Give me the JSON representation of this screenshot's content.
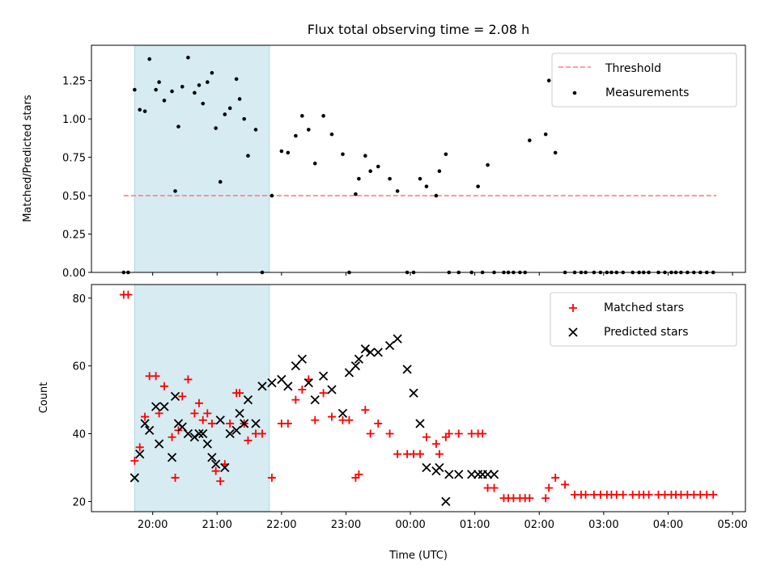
{
  "chart_data": [
    {
      "type": "scatter",
      "title": "Flux total observing time = 2.08 h",
      "ylabel": "Matched/Predicted stars",
      "xlabel": "",
      "xlim": [
        -0.95,
        9.2
      ],
      "ylim": [
        0.0,
        1.48
      ],
      "yticks": [
        "0.00",
        "0.25",
        "0.50",
        "0.75",
        "1.00",
        "1.25"
      ],
      "ytick_values": [
        0.0,
        0.25,
        0.5,
        0.75,
        1.0,
        1.25
      ],
      "shaded_span": [
        -0.28,
        1.81
      ],
      "threshold": {
        "name": "Threshold",
        "value": 0.5,
        "x_range": [
          -0.45,
          8.75
        ],
        "color": "#ff7f7f"
      },
      "series": [
        {
          "name": "Measurements",
          "color": "#000000",
          "x": [
            -0.45,
            -0.38,
            -0.28,
            -0.2,
            -0.12,
            -0.05,
            0.05,
            0.1,
            0.18,
            0.3,
            0.35,
            0.4,
            0.46,
            0.55,
            0.65,
            0.72,
            0.78,
            0.85,
            0.92,
            0.98,
            1.05,
            1.12,
            1.2,
            1.3,
            1.35,
            1.42,
            1.48,
            1.6,
            1.7,
            1.85,
            2.0,
            2.1,
            2.22,
            2.32,
            2.42,
            2.52,
            2.65,
            2.78,
            2.95,
            3.05,
            3.15,
            3.2,
            3.3,
            3.38,
            3.5,
            3.68,
            3.8,
            3.95,
            4.05,
            4.15,
            4.25,
            4.4,
            4.45,
            4.55,
            4.6,
            4.75,
            4.95,
            5.05,
            5.12,
            5.2,
            5.3,
            5.45,
            5.52,
            5.6,
            5.7,
            5.78,
            5.85,
            6.1,
            6.15,
            6.25,
            6.4,
            6.55,
            6.65,
            6.72,
            6.85,
            6.95,
            7.05,
            7.12,
            7.2,
            7.3,
            7.45,
            7.55,
            7.62,
            7.7,
            7.85,
            7.95,
            8.05,
            8.12,
            8.2,
            8.3,
            8.4,
            8.5,
            8.6,
            8.7
          ],
          "y": [
            0.0,
            0.0,
            1.19,
            1.06,
            1.05,
            1.39,
            1.19,
            1.24,
            1.12,
            1.18,
            0.53,
            0.95,
            1.21,
            1.4,
            1.17,
            1.22,
            1.1,
            1.24,
            1.3,
            0.94,
            0.59,
            1.03,
            1.07,
            1.26,
            1.13,
            1.0,
            0.76,
            0.93,
            0.0,
            0.5,
            0.79,
            0.78,
            0.89,
            1.02,
            0.93,
            0.71,
            1.02,
            0.9,
            0.77,
            0.0,
            0.51,
            0.61,
            0.76,
            0.66,
            0.69,
            0.61,
            0.53,
            0.0,
            0.0,
            0.61,
            0.56,
            0.5,
            0.66,
            0.77,
            0.0,
            0.0,
            0.0,
            0.56,
            0.0,
            0.7,
            0.0,
            0.0,
            0.0,
            0.0,
            0.0,
            0.0,
            0.86,
            0.9,
            1.25,
            0.78,
            0.0,
            0.0,
            0.0,
            0.0,
            0.0,
            0.0,
            0.0,
            0.0,
            0.0,
            0.0,
            0.0,
            0.0,
            0.0,
            0.0,
            0.0,
            0.0,
            0.0,
            0.0,
            0.0,
            0.0,
            0.0,
            0.0,
            0.0,
            0.0
          ]
        }
      ],
      "legend": [
        "Threshold",
        "Measurements"
      ],
      "legend_position": "top-right"
    },
    {
      "type": "scatter",
      "title": "",
      "ylabel": "Count",
      "xlabel": "Time (UTC)",
      "xlim": [
        -0.95,
        9.2
      ],
      "ylim": [
        17,
        84
      ],
      "yticks": [
        "20",
        "40",
        "60",
        "80"
      ],
      "ytick_values": [
        20,
        40,
        60,
        80
      ],
      "xticks": [
        "20:00",
        "21:00",
        "22:00",
        "23:00",
        "00:00",
        "01:00",
        "02:00",
        "03:00",
        "04:00",
        "05:00"
      ],
      "xtick_values": [
        0,
        1,
        2,
        3,
        4,
        5,
        6,
        7,
        8,
        9
      ],
      "shaded_span": [
        -0.28,
        1.81
      ],
      "series": [
        {
          "name": "Matched stars",
          "color": "#ff0000",
          "marker": "+",
          "x": [
            -0.45,
            -0.38,
            -0.28,
            -0.2,
            -0.12,
            -0.05,
            0.05,
            0.1,
            0.18,
            0.3,
            0.35,
            0.4,
            0.46,
            0.55,
            0.65,
            0.72,
            0.78,
            0.85,
            0.92,
            0.98,
            1.05,
            1.12,
            1.2,
            1.3,
            1.35,
            1.42,
            1.48,
            1.6,
            1.7,
            1.85,
            2.0,
            2.1,
            2.22,
            2.32,
            2.42,
            2.52,
            2.65,
            2.78,
            2.95,
            3.05,
            3.15,
            3.2,
            3.3,
            3.38,
            3.5,
            3.68,
            3.8,
            3.95,
            4.05,
            4.15,
            4.25,
            4.4,
            4.45,
            4.55,
            4.6,
            4.75,
            4.95,
            5.05,
            5.12,
            5.2,
            5.3,
            5.45,
            5.52,
            5.6,
            5.7,
            5.78,
            5.85,
            6.1,
            6.15,
            6.25,
            6.4,
            6.55,
            6.65,
            6.72,
            6.85,
            6.95,
            7.05,
            7.12,
            7.2,
            7.3,
            7.45,
            7.55,
            7.62,
            7.7,
            7.85,
            7.95,
            8.05,
            8.12,
            8.2,
            8.3,
            8.4,
            8.5,
            8.6,
            8.7
          ],
          "y": [
            81,
            81,
            32,
            36,
            45,
            57,
            57,
            46,
            54,
            39,
            27,
            41,
            51,
            56,
            46,
            49,
            44,
            46,
            43,
            29,
            26,
            31,
            43,
            52,
            52,
            43,
            38,
            40,
            40,
            27,
            43,
            43,
            50,
            53,
            56,
            44,
            52,
            45,
            44,
            44,
            27,
            28,
            47,
            40,
            43,
            40,
            34,
            34,
            34,
            34,
            39,
            37,
            34,
            39,
            40,
            40,
            40,
            40,
            40,
            24,
            24,
            21,
            21,
            21,
            21,
            21,
            21,
            21,
            24,
            27,
            25,
            22,
            22,
            22,
            22,
            22,
            22,
            22,
            22,
            22,
            22,
            22,
            22,
            22,
            22,
            22,
            22,
            22,
            22,
            22,
            22,
            22,
            22,
            22
          ]
        },
        {
          "name": "Predicted stars",
          "color": "#000000",
          "marker": "x",
          "x": [
            -0.28,
            -0.2,
            -0.12,
            -0.05,
            0.05,
            0.1,
            0.18,
            0.3,
            0.35,
            0.4,
            0.46,
            0.55,
            0.65,
            0.72,
            0.78,
            0.85,
            0.92,
            0.98,
            1.05,
            1.12,
            1.2,
            1.3,
            1.35,
            1.42,
            1.48,
            1.6,
            1.7,
            1.85,
            2.0,
            2.1,
            2.22,
            2.32,
            2.42,
            2.52,
            2.65,
            2.78,
            2.95,
            3.05,
            3.15,
            3.2,
            3.3,
            3.38,
            3.5,
            3.68,
            3.8,
            3.95,
            4.05,
            4.15,
            4.25,
            4.4,
            4.45,
            4.55,
            4.6,
            4.75,
            4.95,
            5.05,
            5.12,
            5.2,
            5.3
          ],
          "y": [
            27,
            34,
            43,
            41,
            48,
            37,
            48,
            33,
            51,
            43,
            42,
            40,
            39,
            40,
            40,
            37,
            33,
            31,
            44,
            30,
            40,
            41,
            46,
            43,
            50,
            43,
            54,
            55,
            56,
            54,
            60,
            62,
            55,
            50,
            57,
            53,
            46,
            58,
            60,
            62,
            65,
            64,
            64,
            66,
            68,
            59,
            52,
            43,
            30,
            29,
            30,
            20,
            28,
            28,
            28,
            28,
            28,
            28,
            28
          ]
        }
      ],
      "legend": [
        "Matched stars",
        "Predicted stars"
      ],
      "legend_position": "top-right"
    }
  ]
}
